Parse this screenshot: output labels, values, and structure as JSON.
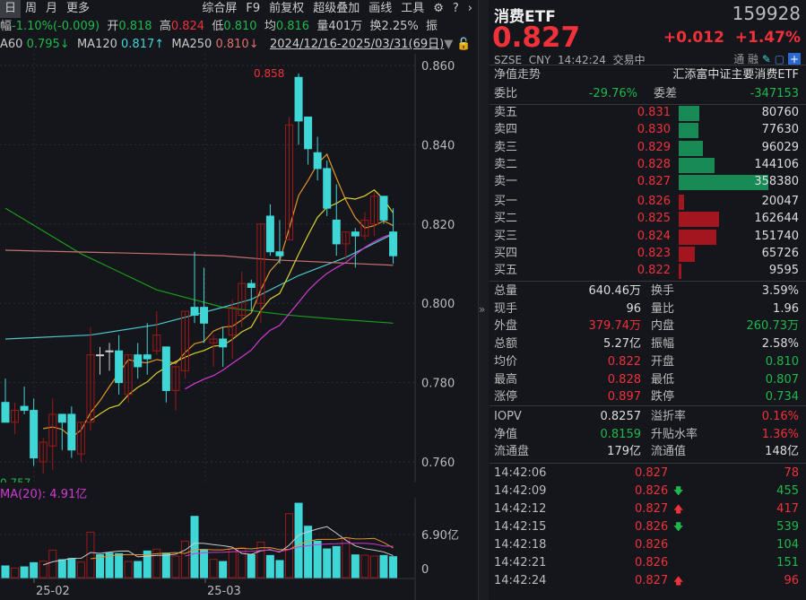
{
  "toolbar": {
    "left": [
      "日",
      "周",
      "月",
      "更多"
    ],
    "right": [
      "综合屏",
      "F9",
      "前复权",
      "超级叠加",
      "画线",
      "工具"
    ],
    "icons": [
      "gear-icon",
      "help-icon",
      "chevron-right-icon"
    ]
  },
  "info": {
    "change_label": "幅",
    "change": "-1.10%(-0.009)",
    "open_label": "开",
    "open": "0.818",
    "high_label": "高",
    "high": "0.824",
    "low_label": "低",
    "low": "0.810",
    "avg_label": "均",
    "avg": "0.816",
    "vol_label": "量",
    "vol": "401万",
    "turn_label": "换",
    "turn": "2.25%",
    "amp_label": "振"
  },
  "ma": {
    "ma60_label": "A60",
    "ma60": "0.795↓",
    "ma120_label": "MA120",
    "ma120": "0.817↑",
    "ma250_label": "MA250",
    "ma250": "0.810↓",
    "range": "2024/12/16-2025/03/31(69日)"
  },
  "colors": {
    "up": "#f0313a",
    "down": "#3fd6d6",
    "ma5": "#e0962a",
    "ma10": "#d8d030",
    "ma20": "#d23ad2",
    "ma60": "#1a9a1a",
    "ma120": "#4cc8c8",
    "ma250": "#c87070",
    "bg": "#14161b"
  },
  "chart_data": {
    "type": "candlestick",
    "price_ticks": [
      "0.860",
      "0.840",
      "0.820",
      "0.800",
      "0.780",
      "0.760"
    ],
    "ylim": [
      0.757,
      0.86
    ],
    "high_marker": "0.858",
    "low_marker": "0.757",
    "x_ticks": [
      "25-02",
      "25-03"
    ],
    "candles": [
      [
        0.775,
        0.77,
        0.781,
        0.77
      ],
      [
        0.77,
        0.773,
        0.775,
        0.767
      ],
      [
        0.774,
        0.773,
        0.779,
        0.772
      ],
      [
        0.773,
        0.761,
        0.776,
        0.759
      ],
      [
        0.76,
        0.765,
        0.766,
        0.757
      ],
      [
        0.764,
        0.772,
        0.776,
        0.758
      ],
      [
        0.772,
        0.77,
        0.772,
        0.763
      ],
      [
        0.772,
        0.763,
        0.774,
        0.761
      ],
      [
        0.762,
        0.77,
        0.77,
        0.76
      ],
      [
        0.77,
        0.787,
        0.794,
        0.768
      ],
      [
        0.787,
        0.787,
        0.789,
        0.782
      ],
      [
        0.788,
        0.788,
        0.79,
        0.783
      ],
      [
        0.788,
        0.78,
        0.792,
        0.777
      ],
      [
        0.777,
        0.787,
        0.787,
        0.775
      ],
      [
        0.787,
        0.784,
        0.79,
        0.781
      ],
      [
        0.787,
        0.786,
        0.795,
        0.782
      ],
      [
        0.788,
        0.792,
        0.798,
        0.787
      ],
      [
        0.789,
        0.778,
        0.789,
        0.775
      ],
      [
        0.778,
        0.784,
        0.784,
        0.773
      ],
      [
        0.783,
        0.798,
        0.798,
        0.781
      ],
      [
        0.799,
        0.797,
        0.813,
        0.795
      ],
      [
        0.799,
        0.795,
        0.809,
        0.79
      ],
      [
        0.79,
        0.791,
        0.792,
        0.784
      ],
      [
        0.791,
        0.789,
        0.794,
        0.784
      ],
      [
        0.792,
        0.799,
        0.801,
        0.786
      ],
      [
        0.797,
        0.805,
        0.808,
        0.794
      ],
      [
        0.805,
        0.804,
        0.806,
        0.798
      ],
      [
        0.8,
        0.82,
        0.82,
        0.795
      ],
      [
        0.822,
        0.813,
        0.825,
        0.812
      ],
      [
        0.813,
        0.812,
        0.821,
        0.81
      ],
      [
        0.816,
        0.845,
        0.847,
        0.816
      ],
      [
        0.857,
        0.846,
        0.858,
        0.84
      ],
      [
        0.847,
        0.839,
        0.847,
        0.835
      ],
      [
        0.838,
        0.834,
        0.842,
        0.831
      ],
      [
        0.834,
        0.824,
        0.836,
        0.822
      ],
      [
        0.821,
        0.815,
        0.83,
        0.812
      ],
      [
        0.815,
        0.818,
        0.818,
        0.811
      ],
      [
        0.818,
        0.817,
        0.819,
        0.809
      ],
      [
        0.817,
        0.821,
        0.823,
        0.816
      ],
      [
        0.82,
        0.827,
        0.828,
        0.817
      ],
      [
        0.827,
        0.821,
        0.827,
        0.82
      ],
      [
        0.818,
        0.812,
        0.824,
        0.81
      ]
    ],
    "ma60": [
      [
        0,
        0.824
      ],
      [
        8,
        0.8125
      ],
      [
        16,
        0.8034
      ],
      [
        23,
        0.799
      ],
      [
        30,
        0.797
      ],
      [
        35,
        0.796
      ],
      [
        41,
        0.795
      ]
    ],
    "ma120": [
      [
        0,
        0.791
      ],
      [
        9,
        0.792
      ],
      [
        16,
        0.7946
      ],
      [
        23,
        0.799
      ],
      [
        26,
        0.801
      ],
      [
        31,
        0.807
      ],
      [
        36,
        0.8116
      ],
      [
        41,
        0.8175
      ]
    ],
    "ma250": [
      [
        0,
        0.8134
      ],
      [
        16,
        0.8125
      ],
      [
        23,
        0.812
      ],
      [
        28,
        0.811
      ],
      [
        41,
        0.8096
      ]
    ],
    "volume_label": "MA(20): 4.91亿",
    "volume_ticks": [
      "6.90亿",
      "0"
    ],
    "volume": [
      1.87,
      1.53,
      1.72,
      2.39,
      2.63,
      4.4,
      2.87,
      3.06,
      2.49,
      7.27,
      3.68,
      3.92,
      3.83,
      2.58,
      2.58,
      4.26,
      4.55,
      3.92,
      3.44,
      5.84,
      9.81,
      4.4,
      2.92,
      2.58,
      4.64,
      4.78,
      3.68,
      5.69,
      3.54,
      2.73,
      10.24,
      11.91,
      8.23,
      5.84,
      4.59,
      4.98,
      6.32,
      3.64,
      3.59,
      3.44,
      3.54,
      3.35
    ]
  },
  "quote": {
    "name": "消费ETF",
    "code": "159928",
    "price": "0.827",
    "change": "+0.012",
    "pct": "+1.47%",
    "exchange": "SZSE",
    "currency": "CNY",
    "time": "14:42:24",
    "status": "交易中",
    "tong": "通",
    "rong": "融",
    "nav_trend": "净值走势",
    "fund_name": "汇添富中证主要消费ETF"
  },
  "ratio": {
    "label": "委比",
    "value": "-29.76%",
    "diff_label": "委差",
    "diff": "-347153"
  },
  "asks": [
    {
      "label": "卖五",
      "price": "0.831",
      "vol": 80760
    },
    {
      "label": "卖四",
      "price": "0.830",
      "vol": 77630
    },
    {
      "label": "卖三",
      "price": "0.829",
      "vol": 96029
    },
    {
      "label": "卖二",
      "price": "0.828",
      "vol": 144106
    },
    {
      "label": "卖一",
      "price": "0.827",
      "vol": 358380
    }
  ],
  "bids": [
    {
      "label": "买一",
      "price": "0.826",
      "vol": 20047
    },
    {
      "label": "买二",
      "price": "0.825",
      "vol": 162644
    },
    {
      "label": "买三",
      "price": "0.824",
      "vol": 151740
    },
    {
      "label": "买四",
      "price": "0.823",
      "vol": 65726
    },
    {
      "label": "买五",
      "price": "0.822",
      "vol": 9595
    }
  ],
  "stats": [
    {
      "l1": "总量",
      "v1": "640.46万",
      "c1": "white",
      "l2": "换手",
      "v2": "3.59%",
      "c2": "white"
    },
    {
      "l1": "现手",
      "v1": "96",
      "c1": "white",
      "l2": "量比",
      "v2": "1.96",
      "c2": "white"
    },
    {
      "l1": "外盘",
      "v1": "379.74万",
      "c1": "red",
      "l2": "内盘",
      "v2": "260.73万",
      "c2": "green"
    },
    {
      "l1": "总额",
      "v1": "5.27亿",
      "c1": "white",
      "l2": "振幅",
      "v2": "2.58%",
      "c2": "white"
    },
    {
      "l1": "均价",
      "v1": "0.822",
      "c1": "red",
      "l2": "开盘",
      "v2": "0.810",
      "c2": "green"
    },
    {
      "l1": "最高",
      "v1": "0.828",
      "c1": "red",
      "l2": "最低",
      "v2": "0.807",
      "c2": "green"
    },
    {
      "l1": "涨停",
      "v1": "0.897",
      "c1": "red",
      "l2": "跌停",
      "v2": "0.734",
      "c2": "green"
    }
  ],
  "etf": [
    {
      "l1": "IOPV",
      "v1": "0.8257",
      "c1": "white",
      "l2": "溢折率",
      "v2": "0.16%",
      "c2": "red"
    },
    {
      "l1": "净值",
      "v1": "0.8159",
      "c1": "green",
      "l2": "升贴水率",
      "v2": "1.36%",
      "c2": "red"
    },
    {
      "l1": "流通盘",
      "v1": "179亿",
      "c1": "white",
      "l2": "流通值",
      "v2": "148亿",
      "c2": "white"
    }
  ],
  "trades": [
    {
      "time": "14:42:06",
      "price": "0.827",
      "dir": "",
      "vol": "78",
      "side": "red"
    },
    {
      "time": "14:42:09",
      "price": "0.826",
      "dir": "down",
      "vol": "455",
      "side": "green"
    },
    {
      "time": "14:42:12",
      "price": "0.827",
      "dir": "up",
      "vol": "417",
      "side": "red"
    },
    {
      "time": "14:42:15",
      "price": "0.826",
      "dir": "down",
      "vol": "539",
      "side": "green"
    },
    {
      "time": "14:42:18",
      "price": "0.826",
      "dir": "",
      "vol": "104",
      "side": "green"
    },
    {
      "time": "14:42:21",
      "price": "0.826",
      "dir": "",
      "vol": "151",
      "side": "green"
    },
    {
      "time": "14:42:24",
      "price": "0.827",
      "dir": "up",
      "vol": "96",
      "side": "red"
    }
  ]
}
